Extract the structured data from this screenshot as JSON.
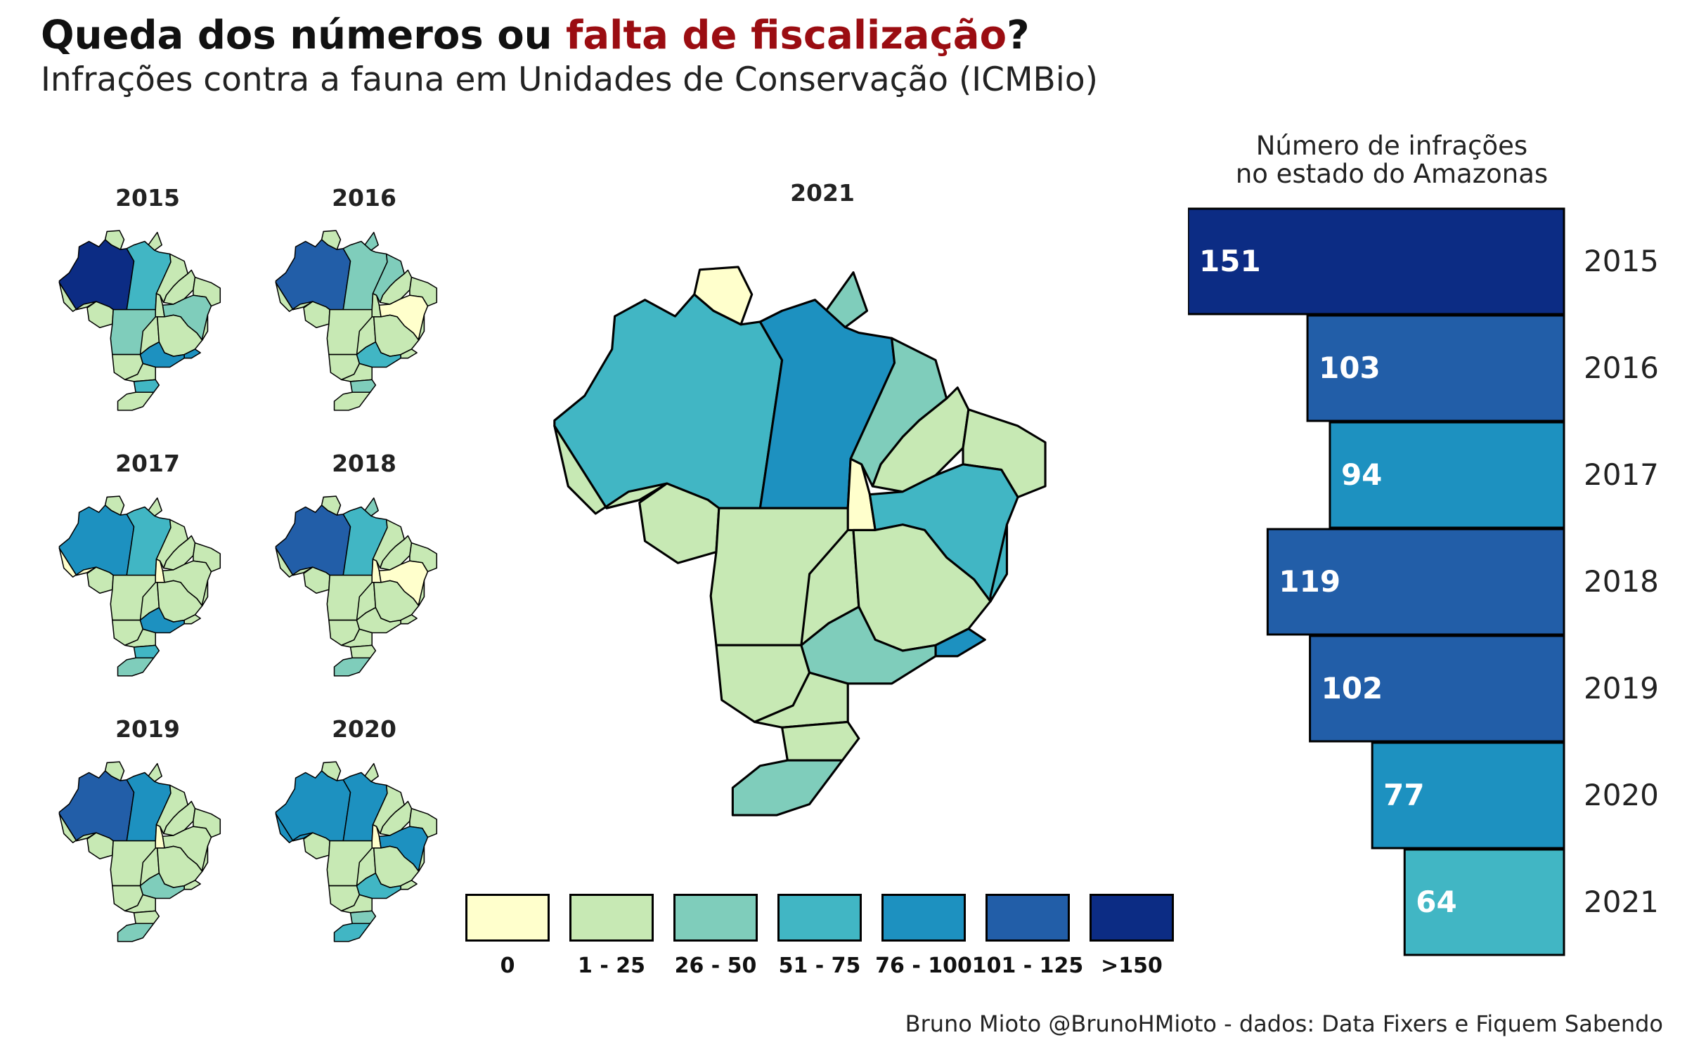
{
  "title": {
    "prefix": "Queda dos números ou ",
    "highlight": "falta de fiscalização",
    "suffix": "?",
    "highlight_color": "#9b0d12"
  },
  "subtitle": "Infrações contra a fauna em Unidades de Conservação (ICMBio)",
  "legend": {
    "items": [
      {
        "label": "0",
        "color": "#ffffcc"
      },
      {
        "label": "1 - 25",
        "color": "#c7e9b4"
      },
      {
        "label": "26 - 50",
        "color": "#7fcdbb"
      },
      {
        "label": "51 - 75",
        "color": "#41b6c4"
      },
      {
        "label": "76 - 100",
        "color": "#1d91c0"
      },
      {
        "label": "101 - 125",
        "color": "#225ea8"
      },
      {
        "label": ">150",
        "color": "#0c2c84"
      }
    ]
  },
  "maps": {
    "small": [
      {
        "year": "2015",
        "AM": 6,
        "PA": 3,
        "RR": 1,
        "AP": 1,
        "AC": 1,
        "RO": 1,
        "TO": 1,
        "MT": 2,
        "MA": 1,
        "BA": 2,
        "MG": 1,
        "SP": 4,
        "RJ": 4,
        "ES": 1,
        "SC": 3,
        "RS": 1,
        "PI": 1
      },
      {
        "year": "2016",
        "AM": 5,
        "PA": 2,
        "RR": 1,
        "AP": 2,
        "AC": 1,
        "RO": 1,
        "TO": 1,
        "MT": 1,
        "MA": 2,
        "BA": 0,
        "MG": 1,
        "SP": 3,
        "RJ": 1,
        "ES": 1,
        "SC": 2,
        "RS": 1,
        "PI": 1
      },
      {
        "year": "2017",
        "AM": 4,
        "PA": 3,
        "RR": 1,
        "AP": 1,
        "AC": 0,
        "RO": 1,
        "TO": 0,
        "MT": 1,
        "MA": 1,
        "BA": 1,
        "MG": 1,
        "SP": 4,
        "RJ": 1,
        "ES": 1,
        "SC": 3,
        "RS": 2,
        "PI": 1
      },
      {
        "year": "2018",
        "AM": 5,
        "PA": 3,
        "RR": 1,
        "AP": 2,
        "AC": 1,
        "RO": 1,
        "TO": 0,
        "MT": 1,
        "MA": 1,
        "BA": 0,
        "MG": 1,
        "SP": 1,
        "RJ": 1,
        "ES": 1,
        "SC": 1,
        "RS": 2,
        "PI": 1
      },
      {
        "year": "2019",
        "AM": 5,
        "PA": 4,
        "RR": 1,
        "AP": 1,
        "AC": 1,
        "RO": 1,
        "TO": 0,
        "MT": 1,
        "MA": 1,
        "BA": 1,
        "MG": 1,
        "SP": 2,
        "RJ": 1,
        "ES": 1,
        "SC": 1,
        "RS": 2,
        "PI": 1
      },
      {
        "year": "2020",
        "AM": 4,
        "PA": 4,
        "RR": 1,
        "AP": 1,
        "AC": 4,
        "RO": 1,
        "TO": 0,
        "MT": 1,
        "MA": 1,
        "BA": 4,
        "MG": 1,
        "SP": 3,
        "RJ": 1,
        "ES": 1,
        "SC": 2,
        "RS": 3,
        "PI": 1
      }
    ],
    "main": {
      "year": "2021",
      "AM": 3,
      "PA": 4,
      "RR": 0,
      "AP": 2,
      "AC": 1,
      "RO": 1,
      "TO": 0,
      "MT": 1,
      "MA": 2,
      "BA": 3,
      "MG": 1,
      "SP": 2,
      "RJ": 4,
      "ES": 3,
      "SC": 1,
      "RS": 2,
      "PI": 1
    }
  },
  "bar_chart": {
    "title_line1": "Número de infrações",
    "title_line2": "no estado do Amazonas"
  },
  "chart_data": {
    "type": "bar",
    "orientation": "horizontal",
    "categories": [
      "2015",
      "2016",
      "2017",
      "2018",
      "2019",
      "2020",
      "2021"
    ],
    "values": [
      151,
      103,
      94,
      119,
      102,
      77,
      64
    ],
    "title": "Número de infrações no estado do Amazonas",
    "xlim": [
      0,
      151
    ]
  },
  "caption": "Bruno Mioto @BrunoHMioto - dados: Data Fixers e Fiquem Sabendo"
}
